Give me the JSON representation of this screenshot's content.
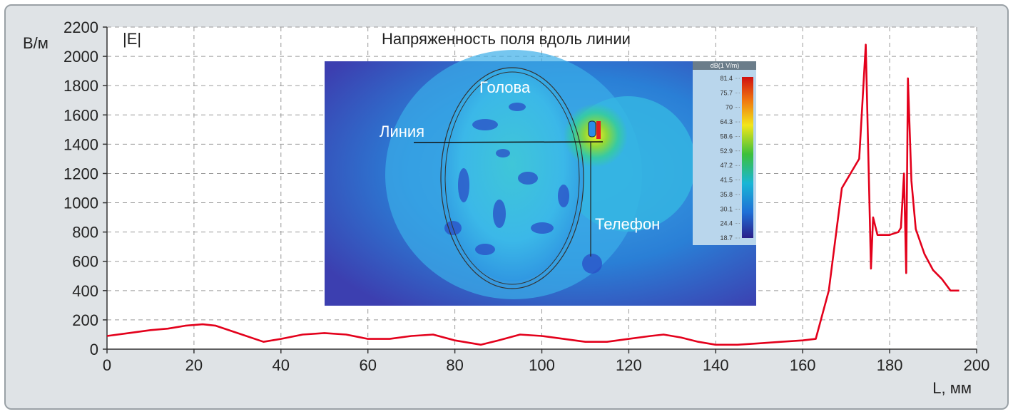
{
  "chart_data": {
    "type": "line",
    "title": "Напряженность поля вдоль линии",
    "series_label": "|E|",
    "ylabel": "В/м",
    "xlabel": "L, мм",
    "xlim": [
      0,
      200
    ],
    "ylim": [
      0,
      2200
    ],
    "xticks": [
      0,
      20,
      40,
      60,
      80,
      100,
      120,
      140,
      160,
      180,
      200
    ],
    "yticks": [
      0,
      200,
      400,
      600,
      800,
      1000,
      1200,
      1400,
      1600,
      1800,
      2000,
      2200
    ],
    "grid": true,
    "color": "#e3001b",
    "series": [
      {
        "x": [
          0,
          5,
          10,
          14,
          18,
          22,
          25,
          30,
          36,
          40,
          45,
          50,
          55,
          60,
          65,
          70,
          75,
          80,
          86,
          90,
          95,
          100,
          105,
          110,
          115,
          120,
          125,
          128,
          132,
          136,
          140,
          145,
          150,
          155,
          160,
          163,
          166,
          169,
          173,
          174.5,
          175.7,
          176.2,
          177.2,
          178,
          180,
          182,
          182.6,
          183.3,
          183.8,
          184.2,
          185,
          186,
          188,
          190,
          192,
          194,
          196
        ],
        "y": [
          90,
          110,
          130,
          140,
          160,
          170,
          160,
          110,
          50,
          70,
          100,
          110,
          100,
          70,
          70,
          90,
          100,
          60,
          30,
          60,
          100,
          90,
          70,
          50,
          50,
          70,
          90,
          100,
          80,
          50,
          30,
          30,
          40,
          50,
          60,
          70,
          400,
          1100,
          1300,
          2080,
          550,
          900,
          780,
          780,
          780,
          800,
          830,
          1200,
          520,
          1850,
          1150,
          820,
          650,
          540,
          480,
          400,
          400
        ]
      }
    ]
  },
  "inset": {
    "labels": {
      "head": "Голова",
      "line": "Линия",
      "phone": "Телефон"
    },
    "colorbar": {
      "title": "dB(1 V/m)",
      "ticks": [
        "81.4",
        "75.7",
        "70",
        "64.3",
        "58.6",
        "52.9",
        "47.2",
        "41.5",
        "35.8",
        "30.1",
        "24.4",
        "18.7"
      ]
    }
  }
}
